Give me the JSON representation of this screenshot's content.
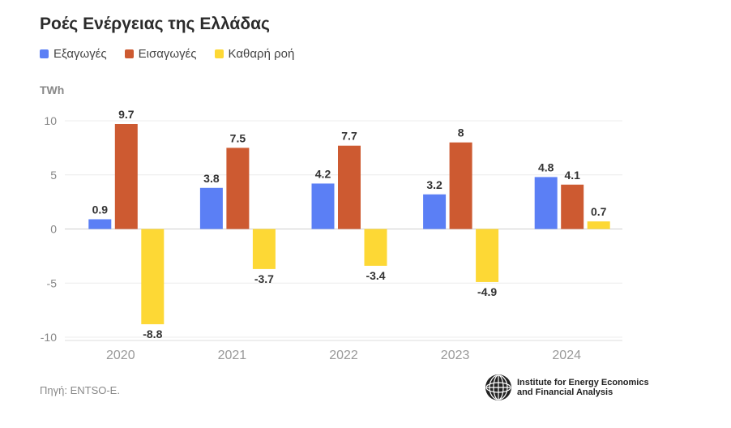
{
  "title": "Ροές Ενέργειας της Ελλάδας",
  "legend": [
    {
      "label": "Εξαγωγές",
      "color": "#5b7ff5"
    },
    {
      "label": "Εισαγωγές",
      "color": "#cd5a31"
    },
    {
      "label": "Καθαρή ροή",
      "color": "#fdd835"
    }
  ],
  "unit": "TWh",
  "source": "Πηγή: ENTSO-E.",
  "logo": {
    "line1": "Institute for Energy Economics",
    "line2": "and Financial Analysis",
    "icon": "globe-icon"
  },
  "chart_data": {
    "type": "bar",
    "categories": [
      "2020",
      "2021",
      "2022",
      "2023",
      "2024"
    ],
    "series": [
      {
        "name": "Εξαγωγές",
        "color": "#5b7ff5",
        "values": [
          0.9,
          3.8,
          4.2,
          3.2,
          4.8
        ],
        "labels": [
          "0.9",
          "3.8",
          "4.2",
          "3.2",
          "4.8"
        ]
      },
      {
        "name": "Εισαγωγές",
        "color": "#cd5a31",
        "values": [
          9.7,
          7.5,
          7.7,
          8,
          4.1
        ],
        "labels": [
          "9.7",
          "7.5",
          "7.7",
          "8",
          "4.1"
        ]
      },
      {
        "name": "Καθαρή ροή",
        "color": "#fdd835",
        "values": [
          -8.8,
          -3.7,
          -3.4,
          -4.9,
          0.7
        ],
        "labels": [
          "-8.8",
          "-3.7",
          "-3.4",
          "-4.9",
          "0.7"
        ]
      }
    ],
    "yticks": [
      10,
      5,
      0,
      -5,
      -10
    ],
    "ytick_labels": [
      "10",
      "5",
      "0",
      "-5",
      "-10"
    ],
    "ylim": [
      -10,
      10
    ],
    "ylabel": "TWh",
    "grid": true,
    "legend_position": "top-left"
  }
}
